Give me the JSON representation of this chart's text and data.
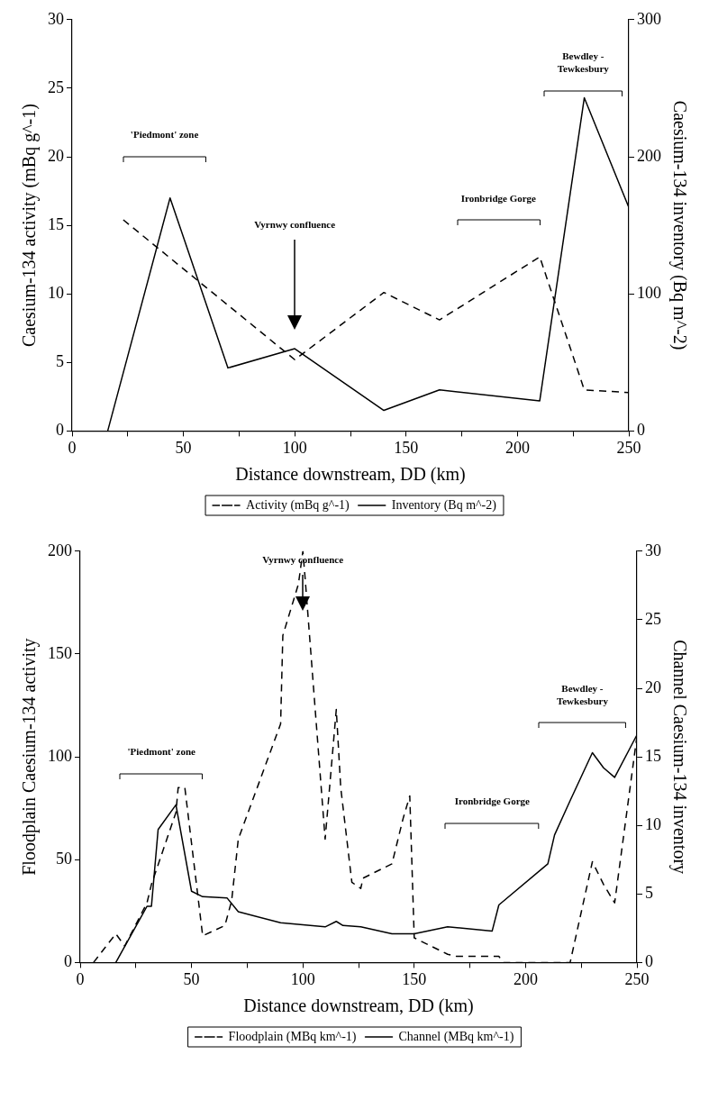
{
  "chart_data": [
    {
      "type": "line",
      "xlabel": "Distance downstream, DD (km)",
      "ylabel": "Caesium-134 activity (mBq g^-1)",
      "y2label": "Caesium-134 inventory (Bq m^-2)",
      "xlim": [
        0,
        250
      ],
      "xticks": [
        0,
        {
          "value": 25,
          "label": null
        },
        50,
        {
          "value": 75,
          "label": null
        },
        100,
        {
          "value": 125,
          "label": null
        },
        150,
        {
          "value": 175,
          "label": null
        },
        200,
        {
          "value": 225,
          "label": null
        },
        250
      ],
      "ylim": [
        0,
        30
      ],
      "yticks": [
        0,
        5,
        10,
        15,
        20,
        25,
        30
      ],
      "y2lim": [
        0,
        300
      ],
      "y2ticks": [
        0,
        100,
        200,
        300
      ],
      "series": [
        {
          "name": "Activity (mBq g^-1)",
          "color": "#000000",
          "line_style": "dashed",
          "x": [
            23,
            100,
            140,
            165,
            210,
            230,
            250
          ],
          "values": [
            15.4,
            5.2,
            10.1,
            8.1,
            12.7,
            3.0,
            2.8
          ]
        },
        {
          "name": "Inventory (Bq m^-2)",
          "color": "#000000",
          "line_style": "solid",
          "axis": "y2",
          "x": [
            16,
            44,
            70,
            100,
            140,
            165,
            210,
            230,
            250
          ],
          "values": [
            0,
            170,
            46,
            60,
            15,
            30,
            22,
            243,
            163
          ]
        }
      ],
      "annotations": [
        "'Piedmont' zone",
        "Vyrnwy confluence",
        "Ironbridge Gorge",
        "Bewdley - Tewkesbury"
      ],
      "legend": "bottom"
    },
    {
      "type": "line",
      "xlabel": "Distance downstream, DD (km)",
      "ylabel": "Floodplain Caesium-134 activity",
      "y2label": "Channel Caesium-134 inventory",
      "xlim": [
        0,
        250
      ],
      "xticks": [
        0,
        {
          "value": 25,
          "label": null
        },
        50,
        {
          "value": 75,
          "label": null
        },
        100,
        {
          "value": 125,
          "label": null
        },
        150,
        {
          "value": 175,
          "label": null
        },
        200,
        {
          "value": 225,
          "label": null
        },
        250
      ],
      "ylim": [
        0,
        200
      ],
      "yticks": [
        0,
        50,
        100,
        150,
        200
      ],
      "y2lim": [
        0,
        30
      ],
      "y2ticks": [
        0,
        5,
        10,
        15,
        20,
        25,
        30
      ],
      "series": [
        {
          "name": "Floodplain (MBq km^-1)",
          "color": "#000000",
          "line_style": "dashed",
          "x": [
            6,
            16,
            20,
            30,
            32,
            43,
            44,
            47,
            55,
            65,
            68,
            71,
            90,
            91,
            98,
            100,
            101,
            110,
            115,
            117,
            122,
            126,
            127,
            140,
            145,
            148,
            150,
            165,
            169,
            188,
            190,
            220,
            230,
            235,
            240,
            250
          ],
          "values": [
            0,
            14,
            8,
            29,
            38,
            73,
            85,
            85,
            13,
            18,
            30,
            60,
            116,
            159,
            184,
            200,
            187,
            60,
            123,
            85,
            39,
            36,
            41,
            48,
            70,
            81,
            12,
            4,
            3,
            3,
            0,
            0,
            49,
            38,
            29,
            110
          ]
        },
        {
          "name": "Channel (MBq km^-1)",
          "color": "#000000",
          "line_style": "solid",
          "axis": "y2",
          "x": [
            16,
            30,
            32,
            35,
            43,
            50,
            55,
            66,
            71,
            90,
            110,
            115,
            118,
            126,
            140,
            150,
            165,
            185,
            188,
            210,
            213,
            220,
            230,
            235,
            240,
            250
          ],
          "values": [
            0,
            4.1,
            4.1,
            9.7,
            11.5,
            5.2,
            4.8,
            4.7,
            3.7,
            2.9,
            2.6,
            3.0,
            2.7,
            2.6,
            2.1,
            2.1,
            2.6,
            2.3,
            4.2,
            7.2,
            9.3,
            11.8,
            15.3,
            14.2,
            13.5,
            16.6
          ]
        }
      ],
      "annotations": [
        "'Piedmont' zone",
        "Vyrnwy confluence",
        "Ironbridge Gorge",
        "Bewdley - Tewkesbury"
      ],
      "legend": "bottom"
    }
  ]
}
